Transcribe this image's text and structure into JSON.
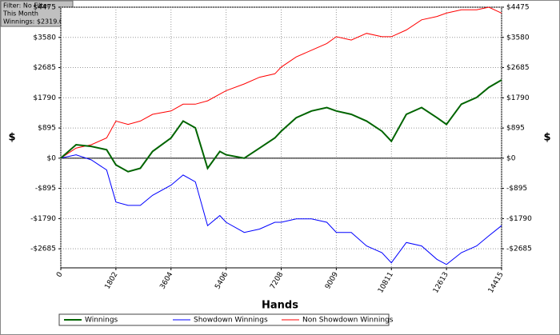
{
  "chart_data": {
    "type": "line",
    "info": [
      "Filter: No Filter",
      "This Month",
      "Winnings: $2319.00"
    ],
    "xlabel": "Hands",
    "ylabel": "$",
    "y2label": "$",
    "grid": true,
    "x": [
      0,
      500,
      1000,
      1500,
      1802,
      2200,
      2600,
      3000,
      3604,
      4000,
      4400,
      4800,
      5200,
      5406,
      6000,
      6500,
      7000,
      7208,
      7700,
      8200,
      8700,
      9009,
      9500,
      10000,
      10500,
      10811,
      11300,
      11800,
      12300,
      12613,
      13100,
      13600,
      14000,
      14415
    ],
    "series": [
      {
        "name": "Winnings",
        "color": "#006400",
        "values": [
          0,
          400,
          350,
          250,
          -200,
          -400,
          -300,
          200,
          600,
          1100,
          900,
          -300,
          200,
          100,
          0,
          300,
          600,
          800,
          1200,
          1400,
          1500,
          1400,
          1300,
          1100,
          800,
          500,
          1300,
          1500,
          1200,
          1000,
          1600,
          1800,
          2100,
          2319
        ]
      },
      {
        "name": "Showdown Winnings",
        "color": "#0000ff",
        "values": [
          0,
          100,
          -50,
          -350,
          -1300,
          -1400,
          -1400,
          -1100,
          -800,
          -500,
          -700,
          -2000,
          -1700,
          -1900,
          -2200,
          -2100,
          -1900,
          -1900,
          -1800,
          -1800,
          -1900,
          -2200,
          -2200,
          -2600,
          -2800,
          -3100,
          -2500,
          -2600,
          -3000,
          -3150,
          -2800,
          -2600,
          -2300,
          -2000
        ]
      },
      {
        "name": "Non Showdown Winnings",
        "color": "#ff0000",
        "values": [
          0,
          300,
          400,
          600,
          1100,
          1000,
          1100,
          1300,
          1400,
          1600,
          1600,
          1700,
          1900,
          2000,
          2200,
          2400,
          2500,
          2700,
          3000,
          3200,
          3400,
          3600,
          3500,
          3700,
          3600,
          3600,
          3800,
          4100,
          4200,
          4300,
          4400,
          4400,
          4475,
          4300
        ]
      }
    ],
    "xlim": [
      0,
      14415
    ],
    "xticks": [
      0,
      1802,
      3604,
      5406,
      7208,
      9009,
      10811,
      12613,
      14415
    ],
    "ylim": [
      -3250,
      4475
    ],
    "yticks": [
      {
        "value": -2685,
        "label": "-$2685"
      },
      {
        "value": -1790,
        "label": "-$1790"
      },
      {
        "value": -895,
        "label": "-$895"
      },
      {
        "value": 0,
        "label": "$0"
      },
      {
        "value": 895,
        "label": "$895"
      },
      {
        "value": 1790,
        "label": "$1790"
      },
      {
        "value": 2685,
        "label": "$2685"
      },
      {
        "value": 3580,
        "label": "$3580"
      },
      {
        "value": 4475,
        "label": "$4475"
      }
    ]
  }
}
